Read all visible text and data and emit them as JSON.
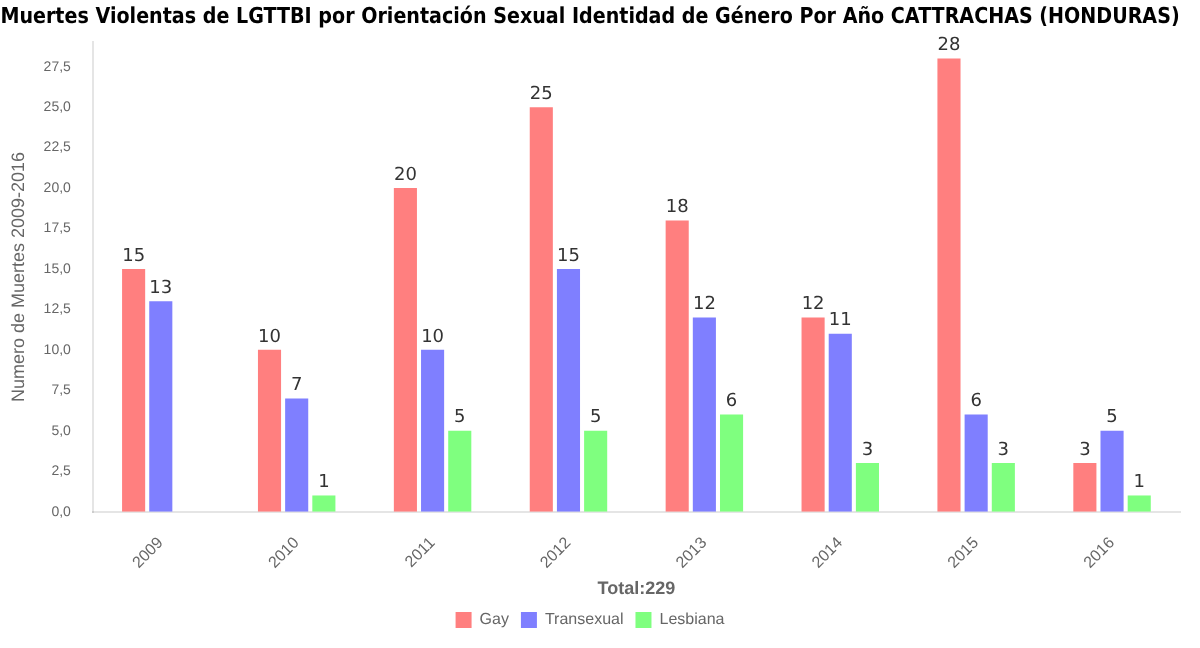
{
  "chart_data": {
    "type": "bar",
    "title": "Muertes Violentas de LGTTBI por Orientación Sexual Identidad de Género Por Año CATTRACHAS (HONDURAS)",
    "xlabel": "Total:229",
    "ylabel": "Numero de Muertes 2009-2016",
    "categories": [
      "2009",
      "2010",
      "2011",
      "2012",
      "2013",
      "2014",
      "2015",
      "2016"
    ],
    "series": [
      {
        "name": "Gay",
        "color": "#ff7f7f",
        "values": [
          15,
          10,
          20,
          25,
          18,
          12,
          28,
          3
        ]
      },
      {
        "name": "Transexual",
        "color": "#7f7fff",
        "values": [
          13,
          7,
          10,
          15,
          12,
          11,
          6,
          5
        ]
      },
      {
        "name": "Lesbiana",
        "color": "#7fff7f",
        "values": [
          null,
          1,
          5,
          5,
          6,
          3,
          3,
          1
        ]
      }
    ],
    "ylim": [
      0,
      29
    ],
    "yticks": [
      {
        "value": 0,
        "label": "0,0"
      },
      {
        "value": 2.5,
        "label": "2,5"
      },
      {
        "value": 5,
        "label": "5,0"
      },
      {
        "value": 7.5,
        "label": "7,5"
      },
      {
        "value": 10,
        "label": "10,0"
      },
      {
        "value": 12.5,
        "label": "12,5"
      },
      {
        "value": 15,
        "label": "15,0"
      },
      {
        "value": 17.5,
        "label": "17,5"
      },
      {
        "value": 20,
        "label": "20,0"
      },
      {
        "value": 22.5,
        "label": "22,5"
      },
      {
        "value": 25,
        "label": "25,0"
      },
      {
        "value": 27.5,
        "label": "27,5"
      }
    ],
    "data_labels": true,
    "legend": "bottom",
    "grid": false
  }
}
